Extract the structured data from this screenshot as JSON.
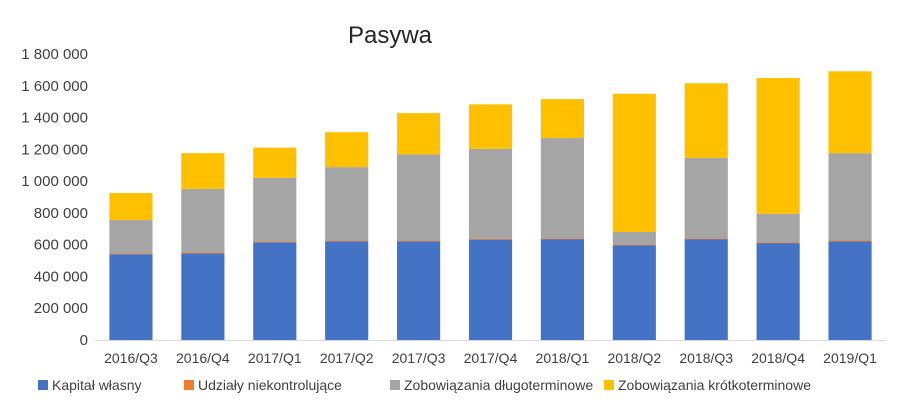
{
  "chart_data": {
    "type": "bar",
    "stacked": true,
    "title": "Pasywa",
    "xlabel": "",
    "ylabel": "",
    "ylim": [
      0,
      1800000
    ],
    "yticks": [
      0,
      200000,
      400000,
      600000,
      800000,
      1000000,
      1200000,
      1400000,
      1600000,
      1800000
    ],
    "ytick_labels": [
      "0",
      "200 000",
      "400 000",
      "600 000",
      "800 000",
      "1 000 000",
      "1 200 000",
      "1 400 000",
      "1 600 000",
      "1 800 000"
    ],
    "grid": false,
    "legend_position": "bottom",
    "categories": [
      "2016/Q3",
      "2016/Q4",
      "2017/Q1",
      "2017/Q2",
      "2017/Q3",
      "2017/Q4",
      "2018/Q1",
      "2018/Q2",
      "2018/Q3",
      "2018/Q4",
      "2019/Q1"
    ],
    "series": [
      {
        "name": "Kapitał własny",
        "color": "#4472C4",
        "values": [
          540000,
          545000,
          615000,
          622000,
          622000,
          632000,
          635000,
          597000,
          635000,
          610000,
          620000
        ]
      },
      {
        "name": "Udziały niekontrolujące",
        "color": "#ED7D31",
        "values": [
          5000,
          6000,
          6000,
          6000,
          6000,
          6000,
          6000,
          6000,
          6000,
          6000,
          6000
        ]
      },
      {
        "name": "Zobowiązania długoterminowe",
        "color": "#A5A5A5",
        "values": [
          210000,
          400000,
          400000,
          460000,
          540000,
          565000,
          630000,
          77000,
          505000,
          178000,
          550000
        ]
      },
      {
        "name": "Zobowiązania krótkoterminowe",
        "color": "#FFC000",
        "values": [
          170000,
          225000,
          190000,
          220000,
          260000,
          280000,
          245000,
          870000,
          470000,
          855000,
          515000
        ]
      }
    ]
  }
}
